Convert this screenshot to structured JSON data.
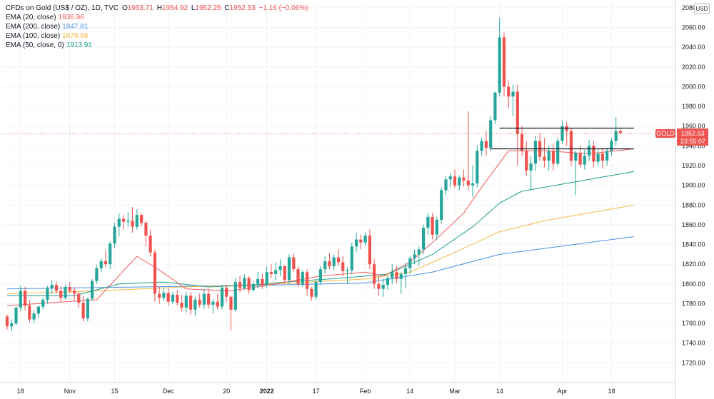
{
  "header": {
    "symbol_text": "CFDs on Gold (US$ / OZ), 1D, TVC",
    "o_label": "O",
    "o_value": "1953.71",
    "h_label": "H",
    "h_value": "1954.92",
    "l_label": "L",
    "l_value": "1952.25",
    "c_label": "C",
    "c_value": "1952.53",
    "change_value": "−1.16 (−0.06%)"
  },
  "indicators": [
    {
      "label": "EMA (20, close)",
      "value": "1936.96",
      "color": "#f05a5a"
    },
    {
      "label": "EMA (200, close)",
      "value": "1847.81",
      "color": "#4a90e2"
    },
    {
      "label": "EMA (100, close)",
      "value": "1879.68",
      "color": "#f5b942"
    },
    {
      "label": "EMA (50, close, 0)",
      "value": "1913.91",
      "color": "#1a9e8a"
    }
  ],
  "currency": "USD",
  "price_tag": {
    "label": "GOLD",
    "price": "1952.53",
    "countdown": "23:55:07",
    "color": "#ef5350"
  },
  "colors": {
    "up": "#26a69a",
    "down": "#ef5350",
    "grid": "#f0f3fa",
    "level_line": "#131722"
  },
  "chart_data": {
    "type": "candlestick",
    "ylim": [
      1700,
      2085
    ],
    "y_ticks": [
      1720,
      1740,
      1760,
      1780,
      1800,
      1820,
      1840,
      1860,
      1880,
      1900,
      1920,
      1940,
      1960,
      1980,
      2000,
      2020,
      2040,
      2060,
      2080
    ],
    "x_ticks": [
      {
        "label": "18",
        "index": 3
      },
      {
        "label": "Nov",
        "index": 14
      },
      {
        "label": "15",
        "index": 24
      },
      {
        "label": "Dec",
        "index": 36
      },
      {
        "label": "20",
        "index": 49
      },
      {
        "label": "2022",
        "index": 58
      },
      {
        "label": "17",
        "index": 69
      },
      {
        "label": "Feb",
        "index": 80
      },
      {
        "label": "14",
        "index": 90
      },
      {
        "label": "Mar",
        "index": 100
      },
      {
        "label": "14",
        "index": 110
      },
      {
        "label": "Apr",
        "index": 124
      },
      {
        "label": "18",
        "index": 135
      }
    ],
    "x_count": 142,
    "candles": [
      [
        1767,
        1769,
        1754,
        1757
      ],
      [
        1757,
        1764,
        1752,
        1760
      ],
      [
        1760,
        1777,
        1758,
        1776
      ],
      [
        1776,
        1798,
        1773,
        1793
      ],
      [
        1793,
        1797,
        1773,
        1778
      ],
      [
        1778,
        1784,
        1761,
        1764
      ],
      [
        1764,
        1773,
        1760,
        1770
      ],
      [
        1770,
        1778,
        1766,
        1777
      ],
      [
        1777,
        1786,
        1774,
        1784
      ],
      [
        1784,
        1798,
        1780,
        1796
      ],
      [
        1796,
        1804,
        1790,
        1799
      ],
      [
        1799,
        1803,
        1790,
        1793
      ],
      [
        1793,
        1798,
        1782,
        1786
      ],
      [
        1786,
        1799,
        1784,
        1797
      ],
      [
        1797,
        1802,
        1790,
        1793
      ],
      [
        1793,
        1797,
        1783,
        1790
      ],
      [
        1790,
        1792,
        1776,
        1781
      ],
      [
        1781,
        1788,
        1762,
        1765
      ],
      [
        1765,
        1786,
        1762,
        1785
      ],
      [
        1785,
        1805,
        1783,
        1803
      ],
      [
        1803,
        1819,
        1800,
        1816
      ],
      [
        1816,
        1826,
        1812,
        1823
      ],
      [
        1823,
        1834,
        1817,
        1820
      ],
      [
        1820,
        1843,
        1815,
        1841
      ],
      [
        1841,
        1862,
        1837,
        1858
      ],
      [
        1858,
        1872,
        1848,
        1866
      ],
      [
        1866,
        1870,
        1855,
        1863
      ],
      [
        1863,
        1873,
        1858,
        1864
      ],
      [
        1864,
        1878,
        1852,
        1858
      ],
      [
        1858,
        1876,
        1855,
        1870
      ],
      [
        1870,
        1872,
        1858,
        1862
      ],
      [
        1862,
        1864,
        1838,
        1849
      ],
      [
        1849,
        1855,
        1828,
        1832
      ],
      [
        1832,
        1835,
        1782,
        1790
      ],
      [
        1790,
        1797,
        1780,
        1786
      ],
      [
        1786,
        1796,
        1783,
        1791
      ],
      [
        1791,
        1796,
        1778,
        1782
      ],
      [
        1782,
        1792,
        1780,
        1789
      ],
      [
        1789,
        1794,
        1778,
        1781
      ],
      [
        1781,
        1789,
        1772,
        1776
      ],
      [
        1776,
        1792,
        1771,
        1788
      ],
      [
        1788,
        1792,
        1769,
        1774
      ],
      [
        1774,
        1787,
        1768,
        1784
      ],
      [
        1784,
        1790,
        1776,
        1779
      ],
      [
        1779,
        1795,
        1775,
        1790
      ],
      [
        1790,
        1795,
        1775,
        1779
      ],
      [
        1779,
        1785,
        1770,
        1782
      ],
      [
        1782,
        1790,
        1774,
        1777
      ],
      [
        1777,
        1799,
        1774,
        1796
      ],
      [
        1796,
        1799,
        1782,
        1787
      ],
      [
        1787,
        1788,
        1753,
        1774
      ],
      [
        1774,
        1806,
        1772,
        1802
      ],
      [
        1802,
        1808,
        1792,
        1796
      ],
      [
        1796,
        1810,
        1794,
        1806
      ],
      [
        1806,
        1808,
        1790,
        1794
      ],
      [
        1794,
        1803,
        1792,
        1800
      ],
      [
        1800,
        1812,
        1796,
        1805
      ],
      [
        1805,
        1810,
        1795,
        1799
      ],
      [
        1799,
        1818,
        1796,
        1812
      ],
      [
        1812,
        1820,
        1806,
        1810
      ],
      [
        1810,
        1822,
        1804,
        1814
      ],
      [
        1814,
        1825,
        1808,
        1818
      ],
      [
        1818,
        1819,
        1801,
        1804
      ],
      [
        1804,
        1830,
        1800,
        1827
      ],
      [
        1827,
        1831,
        1812,
        1815
      ],
      [
        1815,
        1818,
        1797,
        1800
      ],
      [
        1800,
        1814,
        1797,
        1812
      ],
      [
        1812,
        1815,
        1788,
        1795
      ],
      [
        1795,
        1797,
        1783,
        1787
      ],
      [
        1787,
        1805,
        1784,
        1802
      ],
      [
        1802,
        1818,
        1799,
        1815
      ],
      [
        1815,
        1828,
        1810,
        1823
      ],
      [
        1823,
        1831,
        1815,
        1818
      ],
      [
        1818,
        1830,
        1814,
        1827
      ],
      [
        1827,
        1835,
        1818,
        1822
      ],
      [
        1822,
        1828,
        1808,
        1813
      ],
      [
        1813,
        1817,
        1800,
        1814
      ],
      [
        1814,
        1842,
        1810,
        1838
      ],
      [
        1838,
        1852,
        1832,
        1845
      ],
      [
        1845,
        1850,
        1835,
        1842
      ],
      [
        1842,
        1852,
        1838,
        1849
      ],
      [
        1849,
        1855,
        1815,
        1820
      ],
      [
        1820,
        1825,
        1795,
        1800
      ],
      [
        1800,
        1808,
        1788,
        1795
      ],
      [
        1795,
        1805,
        1787,
        1799
      ],
      [
        1799,
        1808,
        1794,
        1806
      ],
      [
        1806,
        1820,
        1800,
        1812
      ],
      [
        1812,
        1818,
        1801,
        1805
      ],
      [
        1805,
        1812,
        1790,
        1810
      ],
      [
        1810,
        1822,
        1796,
        1816
      ],
      [
        1816,
        1828,
        1810,
        1826
      ],
      [
        1826,
        1835,
        1820,
        1830
      ],
      [
        1830,
        1838,
        1818,
        1835
      ],
      [
        1835,
        1860,
        1830,
        1857
      ],
      [
        1857,
        1872,
        1850,
        1868
      ],
      [
        1868,
        1872,
        1845,
        1850
      ],
      [
        1850,
        1868,
        1845,
        1865
      ],
      [
        1865,
        1898,
        1861,
        1895
      ],
      [
        1895,
        1910,
        1890,
        1906
      ],
      [
        1906,
        1912,
        1898,
        1909
      ],
      [
        1909,
        1916,
        1897,
        1900
      ],
      [
        1900,
        1910,
        1895,
        1908
      ],
      [
        1908,
        1916,
        1899,
        1905
      ],
      [
        1905,
        1975,
        1895,
        1900
      ],
      [
        1900,
        1920,
        1888,
        1902
      ],
      [
        1902,
        1940,
        1898,
        1935
      ],
      [
        1935,
        1948,
        1930,
        1945
      ],
      [
        1945,
        1955,
        1930,
        1938
      ],
      [
        1938,
        1970,
        1935,
        1966
      ],
      [
        1966,
        1995,
        1962,
        1994
      ],
      [
        1994,
        2070,
        1990,
        2050
      ],
      [
        2050,
        2055,
        1990,
        2000
      ],
      [
        2000,
        2006,
        1978,
        1990
      ],
      [
        1990,
        2002,
        1970,
        1995
      ],
      [
        1995,
        2002,
        1920,
        1952
      ],
      [
        1952,
        1960,
        1930,
        1935
      ],
      [
        1935,
        1945,
        1910,
        1915
      ],
      [
        1915,
        1930,
        1895,
        1922
      ],
      [
        1922,
        1950,
        1915,
        1945
      ],
      [
        1945,
        1952,
        1925,
        1929
      ],
      [
        1929,
        1948,
        1918,
        1925
      ],
      [
        1925,
        1940,
        1915,
        1935
      ],
      [
        1935,
        1942,
        1915,
        1922
      ],
      [
        1922,
        1948,
        1920,
        1945
      ],
      [
        1945,
        1966,
        1942,
        1960
      ],
      [
        1960,
        1964,
        1940,
        1955
      ],
      [
        1955,
        1958,
        1920,
        1925
      ],
      [
        1925,
        1935,
        1890,
        1933
      ],
      [
        1933,
        1940,
        1918,
        1921
      ],
      [
        1921,
        1936,
        1916,
        1930
      ],
      [
        1930,
        1946,
        1925,
        1940
      ],
      [
        1940,
        1945,
        1918,
        1924
      ],
      [
        1924,
        1936,
        1920,
        1932
      ],
      [
        1932,
        1938,
        1917,
        1925
      ],
      [
        1925,
        1938,
        1920,
        1935
      ],
      [
        1935,
        1948,
        1930,
        1945
      ],
      [
        1945,
        1969,
        1940,
        1955
      ],
      [
        1955,
        1957,
        1952,
        1953
      ]
    ],
    "ema_20": [
      [
        0,
        1778
      ],
      [
        20,
        1784
      ],
      [
        29,
        1828
      ],
      [
        34,
        1814
      ],
      [
        40,
        1795
      ],
      [
        50,
        1793
      ],
      [
        60,
        1800
      ],
      [
        70,
        1808
      ],
      [
        80,
        1812
      ],
      [
        84,
        1808
      ],
      [
        90,
        1822
      ],
      [
        96,
        1846
      ],
      [
        102,
        1872
      ],
      [
        106,
        1898
      ],
      [
        112,
        1935
      ],
      [
        120,
        1935
      ],
      [
        130,
        1932
      ],
      [
        140,
        1937
      ]
    ],
    "ema_50": [
      [
        0,
        1788
      ],
      [
        15,
        1788
      ],
      [
        25,
        1800
      ],
      [
        35,
        1802
      ],
      [
        45,
        1797
      ],
      [
        55,
        1799
      ],
      [
        65,
        1803
      ],
      [
        75,
        1806
      ],
      [
        85,
        1810
      ],
      [
        95,
        1830
      ],
      [
        104,
        1858
      ],
      [
        110,
        1882
      ],
      [
        115,
        1894
      ],
      [
        125,
        1902
      ],
      [
        140,
        1914
      ]
    ],
    "ema_100": [
      [
        0,
        1790
      ],
      [
        20,
        1793
      ],
      [
        40,
        1797
      ],
      [
        60,
        1800
      ],
      [
        80,
        1805
      ],
      [
        90,
        1812
      ],
      [
        100,
        1832
      ],
      [
        110,
        1853
      ],
      [
        120,
        1864
      ],
      [
        130,
        1872
      ],
      [
        140,
        1880
      ]
    ],
    "ema_200": [
      [
        0,
        1795
      ],
      [
        30,
        1797
      ],
      [
        60,
        1799
      ],
      [
        80,
        1801
      ],
      [
        95,
        1812
      ],
      [
        110,
        1830
      ],
      [
        125,
        1839
      ],
      [
        140,
        1848
      ]
    ],
    "levels": [
      {
        "price": 1958,
        "from_index": 110,
        "to_index": 140
      },
      {
        "price": 1937,
        "from_index": 108,
        "to_index": 140
      }
    ],
    "last_price": 1952.53
  }
}
